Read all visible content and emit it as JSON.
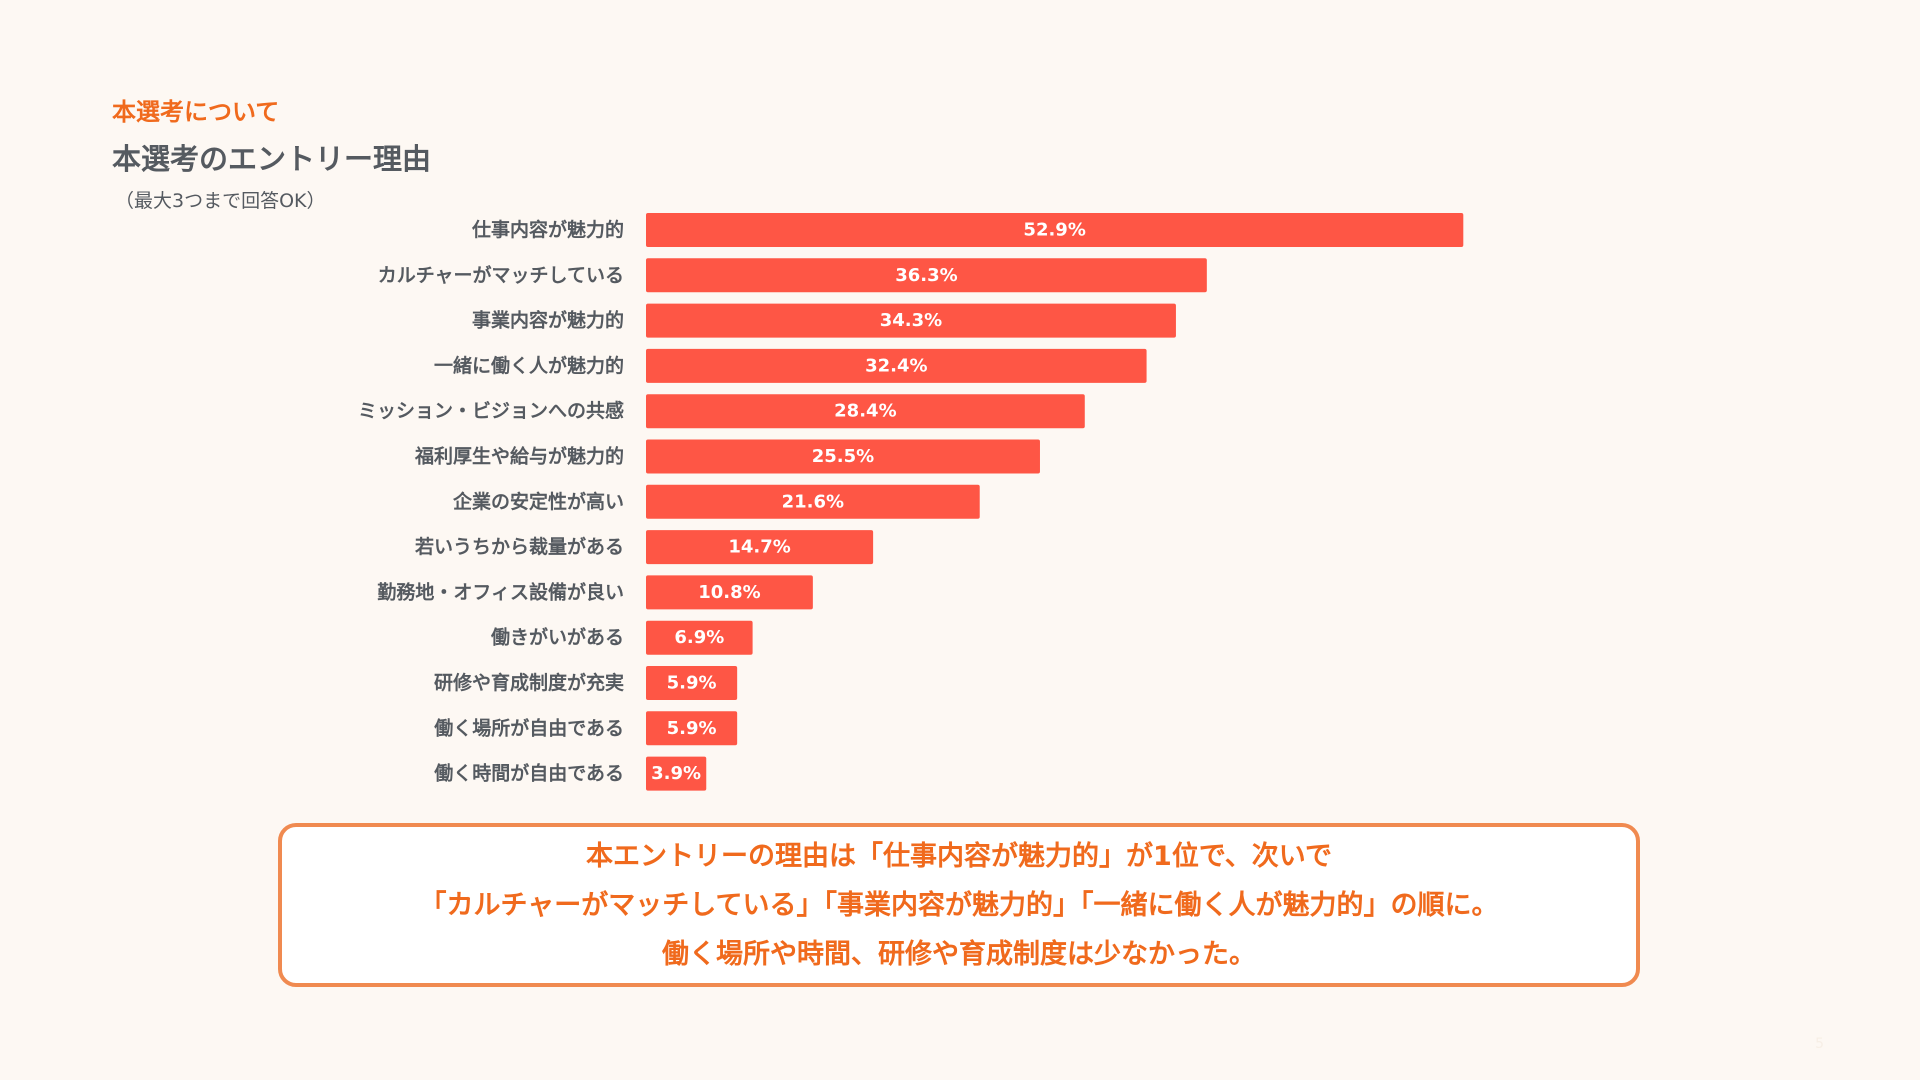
{
  "header": {
    "eyebrow": "本選考について",
    "title": "本選考のエントリー理由",
    "note": "（最大3つまで回答OK）"
  },
  "chart_data": {
    "type": "bar",
    "orientation": "horizontal",
    "categories": [
      "仕事内容が魅力的",
      "カルチャーがマッチしている",
      "事業内容が魅力的",
      "一緒に働く人が魅力的",
      "ミッション・ビジョンへの共感",
      "福利厚生や給与が魅力的",
      "企業の安定性が高い",
      "若いうちから裁量がある",
      "勤務地・オフィス設備が良い",
      "働きがいがある",
      "研修や育成制度が充実",
      "働く場所が自由である",
      "働く時間が自由である"
    ],
    "values": [
      52.9,
      36.3,
      34.3,
      32.4,
      28.4,
      25.5,
      21.6,
      14.7,
      10.8,
      6.9,
      5.9,
      5.9,
      3.9
    ],
    "value_labels": [
      "52.9%",
      "36.3%",
      "34.3%",
      "32.4%",
      "28.4%",
      "25.5%",
      "21.6%",
      "14.7%",
      "10.8%",
      "6.9%",
      "5.9%",
      "5.9%",
      "3.9%"
    ],
    "unit": "%",
    "bar_color": "#fe5645",
    "grid": false
  },
  "summary": {
    "lines": [
      "本エントリーの理由は「仕事内容が魅力的」が1位で、次いで",
      "「カルチャーがマッチしている」「事業内容が魅力的」「一緒に働く人が魅力的」の順に。",
      "働く場所や時間、研修や育成制度は少なかった。"
    ]
  },
  "page_number": "5",
  "colors": {
    "accent": "#f06a1d",
    "bar": "#fe5645",
    "text": "#555a60",
    "background": "#fdf8f3",
    "summary_border": "#f08a50"
  }
}
